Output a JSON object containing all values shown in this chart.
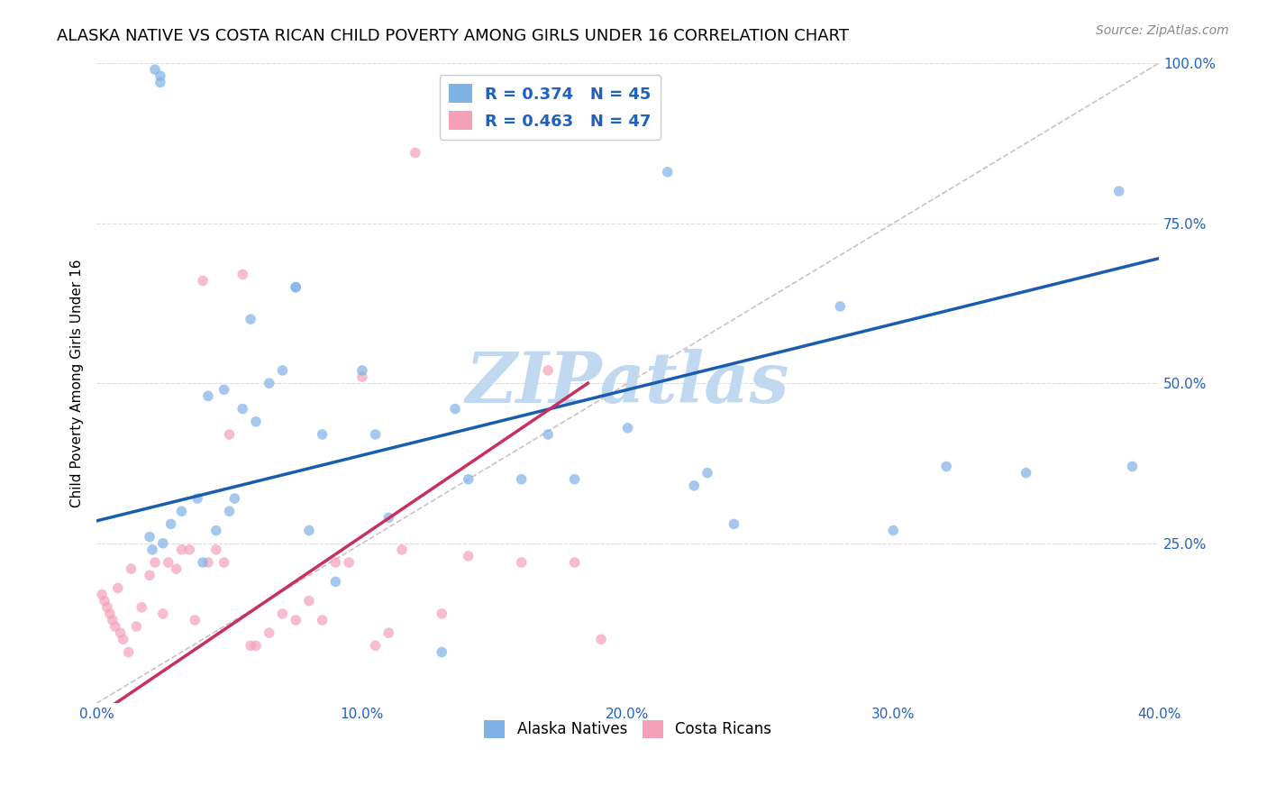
{
  "title": "ALASKA NATIVE VS COSTA RICAN CHILD POVERTY AMONG GIRLS UNDER 16 CORRELATION CHART",
  "source": "Source: ZipAtlas.com",
  "xlabel_ticks": [
    "0.0%",
    "10.0%",
    "20.0%",
    "30.0%",
    "40.0%"
  ],
  "ylabel_ticks": [
    "25.0%",
    "50.0%",
    "75.0%",
    "100.0%"
  ],
  "ylabel_label": "Child Poverty Among Girls Under 16",
  "xlim": [
    0.0,
    0.4
  ],
  "ylim": [
    0.0,
    1.0
  ],
  "legend_entries": [
    {
      "label": "R = 0.374   N = 45",
      "color": "#a8c8e8"
    },
    {
      "label": "R = 0.463   N = 47",
      "color": "#f4b8c8"
    }
  ],
  "legend_bottom": [
    "Alaska Natives",
    "Costa Ricans"
  ],
  "alaska_scatter_x": [
    0.022,
    0.024,
    0.024,
    0.025,
    0.028,
    0.032,
    0.038,
    0.04,
    0.042,
    0.045,
    0.048,
    0.05,
    0.052,
    0.055,
    0.058,
    0.06,
    0.065,
    0.07,
    0.075,
    0.075,
    0.08,
    0.085,
    0.09,
    0.1,
    0.105,
    0.11,
    0.13,
    0.135,
    0.14,
    0.16,
    0.17,
    0.18,
    0.2,
    0.215,
    0.225,
    0.23,
    0.24,
    0.28,
    0.3,
    0.32,
    0.35,
    0.385,
    0.39,
    0.02,
    0.021
  ],
  "alaska_scatter_y": [
    0.99,
    0.98,
    0.97,
    0.25,
    0.28,
    0.3,
    0.32,
    0.22,
    0.48,
    0.27,
    0.49,
    0.3,
    0.32,
    0.46,
    0.6,
    0.44,
    0.5,
    0.52,
    0.65,
    0.65,
    0.27,
    0.42,
    0.19,
    0.52,
    0.42,
    0.29,
    0.08,
    0.46,
    0.35,
    0.35,
    0.42,
    0.35,
    0.43,
    0.83,
    0.34,
    0.36,
    0.28,
    0.62,
    0.27,
    0.37,
    0.36,
    0.8,
    0.37,
    0.26,
    0.24
  ],
  "costa_scatter_x": [
    0.002,
    0.003,
    0.004,
    0.005,
    0.006,
    0.007,
    0.008,
    0.009,
    0.01,
    0.012,
    0.013,
    0.015,
    0.017,
    0.02,
    0.022,
    0.025,
    0.027,
    0.03,
    0.032,
    0.035,
    0.037,
    0.04,
    0.042,
    0.045,
    0.048,
    0.05,
    0.055,
    0.058,
    0.06,
    0.065,
    0.07,
    0.075,
    0.08,
    0.085,
    0.09,
    0.095,
    0.1,
    0.105,
    0.11,
    0.115,
    0.12,
    0.13,
    0.14,
    0.16,
    0.17,
    0.18,
    0.19
  ],
  "costa_scatter_y": [
    0.17,
    0.16,
    0.15,
    0.14,
    0.13,
    0.12,
    0.18,
    0.11,
    0.1,
    0.08,
    0.21,
    0.12,
    0.15,
    0.2,
    0.22,
    0.14,
    0.22,
    0.21,
    0.24,
    0.24,
    0.13,
    0.66,
    0.22,
    0.24,
    0.22,
    0.42,
    0.67,
    0.09,
    0.09,
    0.11,
    0.14,
    0.13,
    0.16,
    0.13,
    0.22,
    0.22,
    0.51,
    0.09,
    0.11,
    0.24,
    0.86,
    0.14,
    0.23,
    0.22,
    0.52,
    0.22,
    0.1
  ],
  "blue_line_x": [
    0.0,
    0.4
  ],
  "blue_line_y": [
    0.285,
    0.695
  ],
  "pink_line_x": [
    0.0,
    0.185
  ],
  "pink_line_y": [
    -0.02,
    0.5
  ],
  "diag_line_x": [
    0.0,
    0.4
  ],
  "diag_line_y": [
    0.0,
    1.0
  ],
  "watermark": "ZIPatlas",
  "watermark_color": "#c0d8f0",
  "scatter_size": 70,
  "alaska_color": "#7fb3e8",
  "costa_color": "#f4a0b8",
  "blue_line_color": "#1a5cb0",
  "pink_line_color": "#c83060",
  "diag_line_color": "#d0c0c0",
  "title_fontsize": 13,
  "label_fontsize": 11,
  "tick_fontsize": 11,
  "source_fontsize": 10,
  "background_color": "#ffffff",
  "grid_color": "#dddddd"
}
